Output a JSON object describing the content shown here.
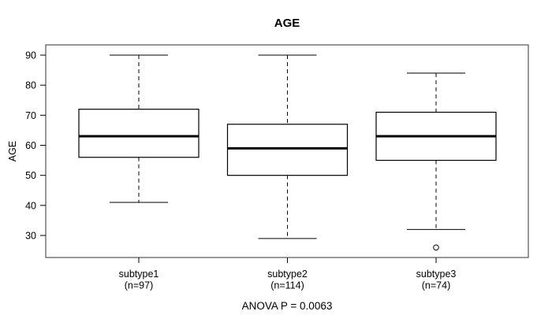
{
  "chart_data": {
    "type": "boxplot",
    "title": "AGE",
    "ylabel": "AGE",
    "xlabel": "",
    "ylim": [
      22.5,
      93.5
    ],
    "yticks": [
      30,
      40,
      50,
      60,
      70,
      80,
      90
    ],
    "grid": false,
    "annotation": "ANOVA P = 0.0063",
    "groups": [
      {
        "label": "subtype1",
        "sublabel": "(n=97)",
        "n": 97,
        "whisker_low": 41,
        "q1": 56,
        "median": 63,
        "q3": 72,
        "whisker_high": 90,
        "outliers": []
      },
      {
        "label": "subtype2",
        "sublabel": "(n=114)",
        "n": 114,
        "whisker_low": 29,
        "q1": 50,
        "median": 59,
        "q3": 67,
        "whisker_high": 90,
        "outliers": []
      },
      {
        "label": "subtype3",
        "sublabel": "(n=74)",
        "n": 74,
        "whisker_low": 32,
        "q1": 55,
        "median": 63,
        "q3": 71,
        "whisker_high": 84,
        "outliers": [
          26
        ]
      }
    ],
    "colors": {
      "line": "#000000",
      "frame": "#555555",
      "box_fill": "#ffffff",
      "background": "#ffffff"
    }
  }
}
